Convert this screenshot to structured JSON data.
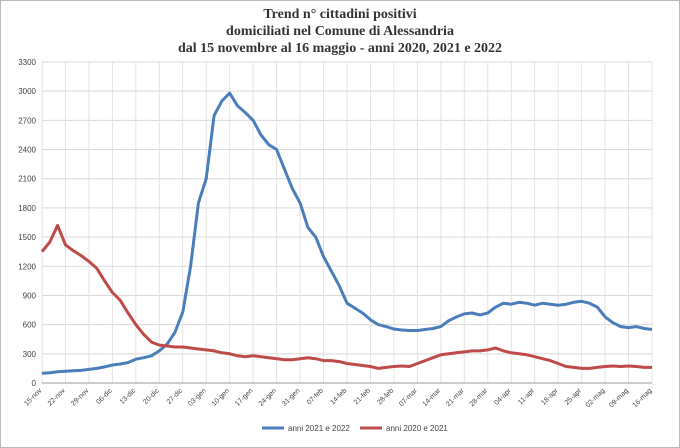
{
  "chart_data": {
    "type": "line",
    "title_lines": [
      "Trend n° cittadini positivi",
      "domiciliati nel Comune di Alessandria",
      "dal 15 novembre al 16 maggio - anni 2020, 2021 e 2022"
    ],
    "categories": [
      "15-nov",
      null,
      null,
      "22-nov",
      null,
      null,
      "29-nov",
      null,
      null,
      "06-dic",
      null,
      null,
      "13-dic",
      null,
      null,
      "20-dic",
      null,
      null,
      "27-dic",
      null,
      null,
      "03-gen",
      null,
      null,
      "10-gen",
      null,
      null,
      "17-gen",
      null,
      null,
      "24-gen",
      null,
      null,
      "31-gen",
      null,
      null,
      "07-feb",
      null,
      null,
      "14-feb",
      null,
      null,
      "21-feb",
      null,
      null,
      "28-feb",
      null,
      null,
      "07-mar",
      null,
      null,
      "14-mar",
      null,
      null,
      "21-mar",
      null,
      null,
      "28-mar",
      null,
      null,
      "04-apr",
      null,
      null,
      "11-apr",
      null,
      null,
      "18-apr",
      null,
      null,
      "25-apr",
      null,
      null,
      "02-mag",
      null,
      null,
      "09-mag",
      null,
      null,
      "16-mag"
    ],
    "series": [
      {
        "name": "anni 2021 e 2022",
        "color": "#4a7ebb",
        "values": [
          100,
          105,
          115,
          120,
          125,
          130,
          140,
          150,
          165,
          185,
          195,
          210,
          245,
          260,
          280,
          330,
          400,
          520,
          730,
          1200,
          1850,
          2100,
          2750,
          2900,
          2980,
          2850,
          2780,
          2700,
          2550,
          2450,
          2400,
          2200,
          2000,
          1850,
          1600,
          1500,
          1300,
          1150,
          1000,
          820,
          770,
          720,
          650,
          600,
          580,
          555,
          545,
          540,
          540,
          550,
          560,
          580,
          640,
          680,
          710,
          720,
          700,
          720,
          780,
          820,
          810,
          830,
          820,
          800,
          820,
          810,
          800,
          810,
          830,
          840,
          820,
          780,
          680,
          620,
          580,
          570,
          580,
          560,
          550
        ]
      },
      {
        "name": "anni 2020 e 2021",
        "color": "#be4b48",
        "values": [
          1350,
          1450,
          1620,
          1420,
          1360,
          1310,
          1250,
          1180,
          1050,
          930,
          850,
          720,
          600,
          500,
          420,
          390,
          380,
          370,
          370,
          360,
          350,
          340,
          330,
          310,
          300,
          280,
          270,
          280,
          270,
          260,
          250,
          240,
          240,
          250,
          260,
          250,
          230,
          230,
          220,
          200,
          190,
          180,
          170,
          150,
          160,
          170,
          175,
          170,
          200,
          230,
          260,
          290,
          300,
          310,
          320,
          330,
          330,
          340,
          360,
          330,
          310,
          300,
          290,
          270,
          250,
          230,
          200,
          170,
          160,
          150,
          150,
          160,
          170,
          175,
          170,
          175,
          170,
          160,
          160
        ]
      }
    ],
    "ylim": [
      0,
      3300
    ],
    "yticks": [
      0,
      300,
      600,
      900,
      1200,
      1500,
      1800,
      2100,
      2400,
      2700,
      3000,
      3300
    ],
    "grid": true,
    "legend": "bottom"
  }
}
